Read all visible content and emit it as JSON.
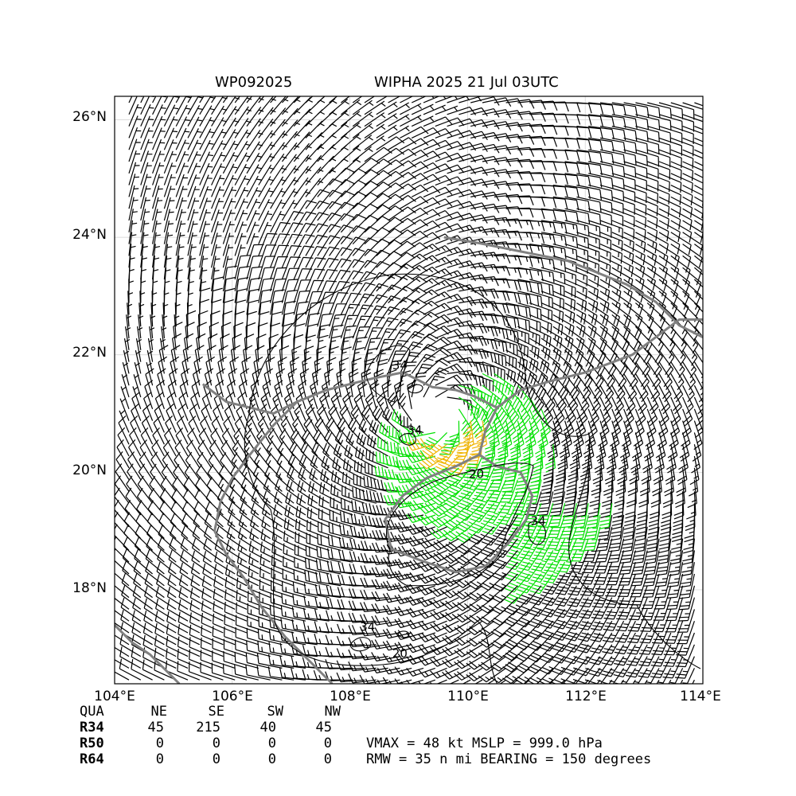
{
  "header": {
    "storm_id": "WP092025",
    "storm_title": "WIPHA 2025 21 Jul 03UTC"
  },
  "map": {
    "lon_range": [
      104,
      114
    ],
    "lat_range": [
      16.4,
      26.4
    ],
    "grid": true,
    "x_ticks": [
      "104°E",
      "106°E",
      "108°E",
      "110°E",
      "112°E",
      "114°E"
    ],
    "y_ticks": [
      "18°N",
      "20°N",
      "22°N",
      "24°N",
      "26°N"
    ],
    "center": {
      "lon": 109.5,
      "lat": 21.0
    },
    "colors": {
      "barb_low": "#000000",
      "barb_34kt": "#00e000",
      "barb_50kt": "#f0b400",
      "coast": "#808080",
      "contour": "#000000"
    },
    "contour_labels": [
      {
        "text": "34",
        "lon": 108.85,
        "lat": 21.75
      },
      {
        "text": "34",
        "lon": 109.1,
        "lat": 20.65
      },
      {
        "text": "20",
        "lon": 110.15,
        "lat": 19.9
      },
      {
        "text": "34",
        "lon": 111.2,
        "lat": 19.1
      },
      {
        "text": "34",
        "lon": 108.3,
        "lat": 17.3
      },
      {
        "text": "20",
        "lon": 108.85,
        "lat": 16.85
      }
    ]
  },
  "wind_radii": {
    "headers": [
      "QUA",
      "NE",
      "SE",
      "SW",
      "NW"
    ],
    "rows": [
      {
        "label": "R34",
        "values": [
          "45",
          "215",
          "40",
          "45"
        ]
      },
      {
        "label": "R50",
        "values": [
          "0",
          "0",
          "0",
          "0"
        ]
      },
      {
        "label": "R64",
        "values": [
          "0",
          "0",
          "0",
          "0"
        ]
      }
    ]
  },
  "summary": {
    "line1": "VMAX =  48 kt MSLP = 999.0 hPa",
    "line2": "RMW =  35 n mi BEARING = 150 degrees"
  }
}
